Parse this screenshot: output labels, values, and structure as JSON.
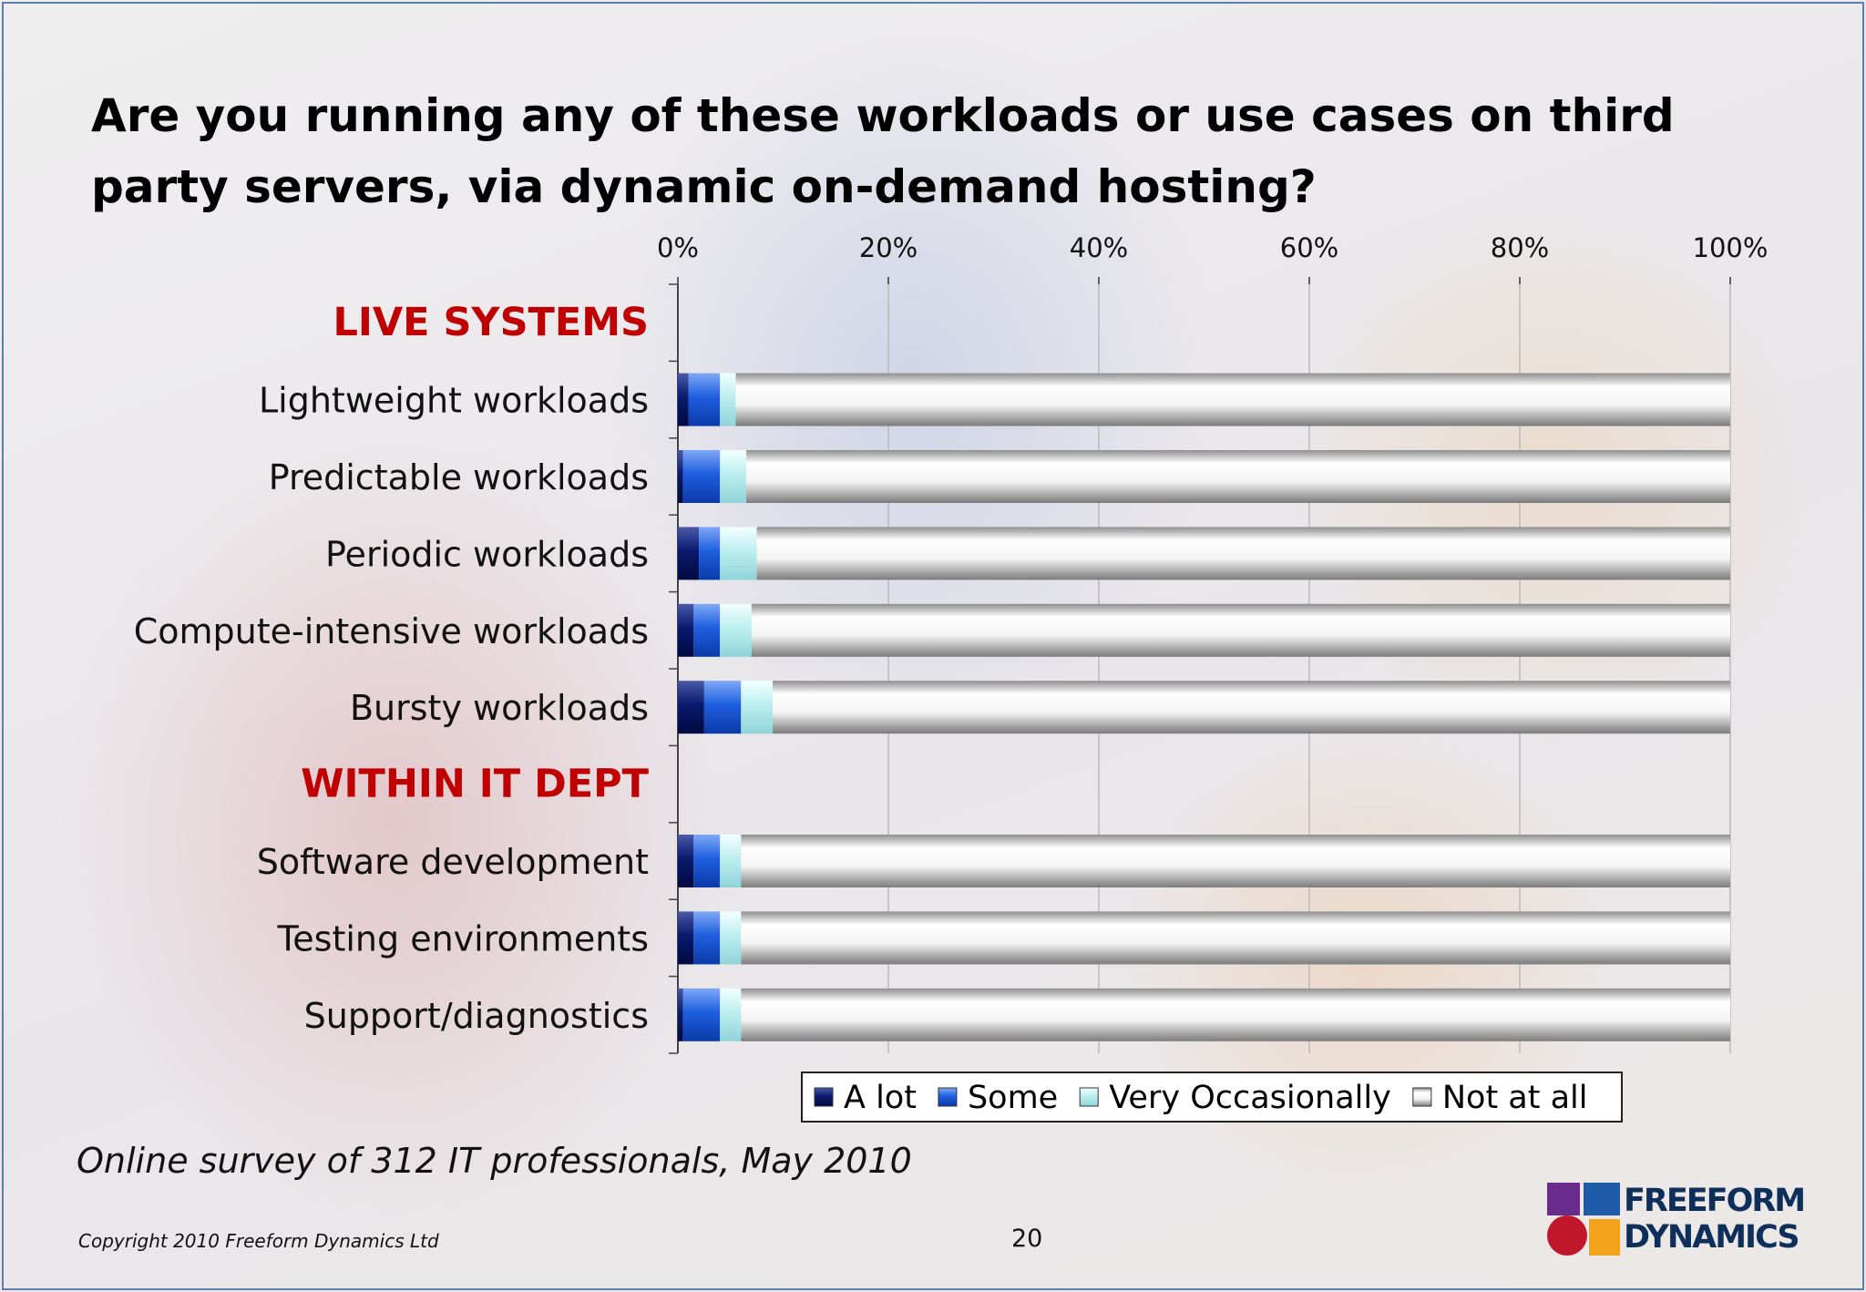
{
  "slide": {
    "title": "Are you running any of these workloads or use cases on third party servers, via dynamic on-demand hosting?",
    "footnote": "Online survey of 312 IT professionals, May 2010",
    "copyright": "Copyright 2010 Freeform Dynamics Ltd",
    "page_number": "20",
    "logo_line1": "FREEFORM",
    "logo_line2": "DYNAMICS"
  },
  "colors": {
    "a_lot": "#0a1a6e",
    "some": "#1e5fe0",
    "very_occasionally": "#bdeef0",
    "not_at_all": "#d4d4d4",
    "group_label": "#c00000"
  },
  "chart_data": {
    "type": "bar",
    "orientation": "horizontal",
    "stacked": true,
    "percent_stacked": true,
    "title": "",
    "xlabel": "",
    "ylabel": "",
    "xlim": [
      0,
      100
    ],
    "x_ticks": [
      "0%",
      "20%",
      "40%",
      "60%",
      "80%",
      "100%"
    ],
    "x_axis_position": "top",
    "grid": true,
    "legend_position": "bottom",
    "rows": [
      {
        "label": "LIVE SYSTEMS",
        "group_header": true
      },
      {
        "label": "Lightweight workloads"
      },
      {
        "label": "Predictable workloads"
      },
      {
        "label": "Periodic workloads"
      },
      {
        "label": "Compute-intensive workloads"
      },
      {
        "label": "Bursty workloads"
      },
      {
        "label": "WITHIN IT DEPT",
        "group_header": true
      },
      {
        "label": "Software development"
      },
      {
        "label": "Testing environments"
      },
      {
        "label": "Support/diagnostics"
      }
    ],
    "categories": [
      "Lightweight workloads",
      "Predictable workloads",
      "Periodic workloads",
      "Compute-intensive workloads",
      "Bursty workloads",
      "Software development",
      "Testing environments",
      "Support/diagnostics"
    ],
    "series": [
      {
        "name": "A lot",
        "key": "a_lot",
        "values": [
          1,
          0.5,
          2,
          1.5,
          2.5,
          1.5,
          1.5,
          0.5
        ]
      },
      {
        "name": "Some",
        "key": "some",
        "values": [
          3,
          3.5,
          2,
          2.5,
          3.5,
          2.5,
          2.5,
          3.5
        ]
      },
      {
        "name": "Very Occasionally",
        "key": "very_occasionally",
        "values": [
          1.5,
          2.5,
          3.5,
          3,
          3,
          2,
          2,
          2
        ]
      },
      {
        "name": "Not at all",
        "key": "not_at_all",
        "values": [
          94.5,
          93.5,
          92.5,
          93,
          91,
          94,
          94,
          94
        ]
      }
    ]
  }
}
